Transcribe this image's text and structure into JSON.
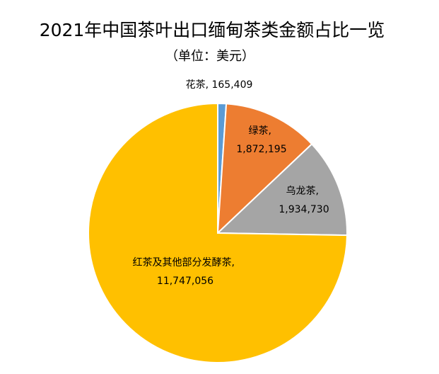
{
  "chart_data": {
    "type": "pie",
    "title": "2021年中国茶叶出口缅甸茶类金额占比一览",
    "subtitle": "（单位：美元）",
    "values": [
      165409,
      1872195,
      1934730,
      11747056
    ],
    "value_labels": [
      "花茶, 165,409",
      "绿茶, 1,872,195",
      "乌龙茶, 1,934,730",
      "红茶及其他部分发酵茶, 11,747,056"
    ],
    "colors": [
      "#5b9bd5",
      "#ed7d31",
      "#a5a5a5",
      "#ffc000"
    ]
  }
}
